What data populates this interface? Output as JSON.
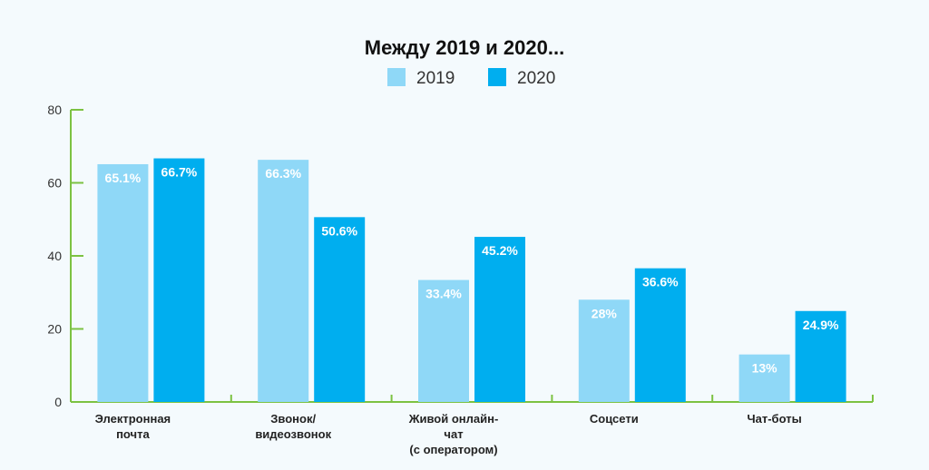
{
  "chart_data": {
    "type": "bar",
    "title": "Между 2019 и 2020...",
    "categories": [
      [
        "Электронная",
        "почта"
      ],
      [
        "Звонок/",
        "видеозвонок"
      ],
      [
        "Живой онлайн-",
        "чат",
        "(с оператором)"
      ],
      [
        "Соцсети"
      ],
      [
        "Чат-боты"
      ]
    ],
    "series": [
      {
        "name": "2019",
        "color": "#8fd8f7",
        "values": [
          65.1,
          66.3,
          33.4,
          28,
          13
        ],
        "labels": [
          "65.1%",
          "66.3%",
          "33.4%",
          "28%",
          "13%"
        ]
      },
      {
        "name": "2020",
        "color": "#00aeef",
        "values": [
          66.7,
          50.6,
          45.2,
          36.6,
          24.9
        ],
        "labels": [
          "66.7%",
          "50.6%",
          "45.2%",
          "36.6%",
          "24.9%"
        ]
      }
    ],
    "ylim": [
      0,
      80
    ],
    "yticks": [
      0,
      20,
      40,
      60,
      80
    ],
    "xlabel": "",
    "ylabel": "",
    "axis_color": "#7cc242",
    "legend": "top-center"
  }
}
